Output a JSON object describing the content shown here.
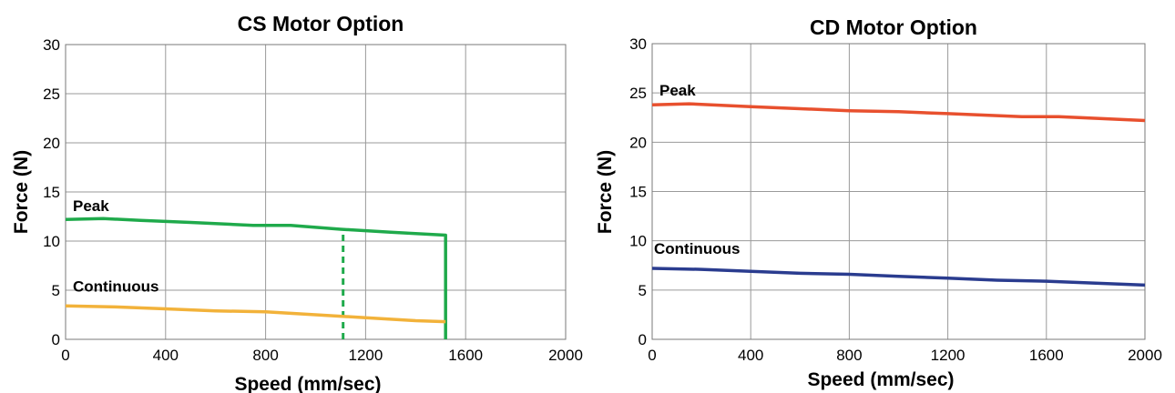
{
  "chart_data": [
    {
      "type": "line",
      "title": "CS Motor Option",
      "xlabel": "Speed (mm/sec)",
      "ylabel": "Force (N)",
      "xlim": [
        0,
        2000
      ],
      "ylim": [
        0,
        30
      ],
      "xticks": [
        0,
        400,
        800,
        1200,
        1600,
        2000
      ],
      "yticks": [
        0,
        5,
        10,
        15,
        20,
        25,
        30
      ],
      "grid": true,
      "series": [
        {
          "name": "Peak",
          "color": "#1faa4b",
          "x": [
            0,
            150,
            300,
            500,
            750,
            900,
            1100,
            1300,
            1520,
            1520
          ],
          "y": [
            12.2,
            12.3,
            12.1,
            11.9,
            11.6,
            11.6,
            11.2,
            10.9,
            10.6,
            0
          ]
        },
        {
          "name": "Continuous",
          "color": "#f2b23a",
          "x": [
            0,
            200,
            400,
            600,
            800,
            1000,
            1200,
            1400,
            1520
          ],
          "y": [
            3.4,
            3.3,
            3.1,
            2.9,
            2.8,
            2.5,
            2.2,
            1.9,
            1.8
          ]
        }
      ],
      "annotations": [
        {
          "type": "dashed-vertical",
          "color": "#1faa4b",
          "x": 1110,
          "y_from": 0,
          "y_to": 11.2
        }
      ]
    },
    {
      "type": "line",
      "title": "CD Motor Option",
      "xlabel": "Speed (mm/sec)",
      "ylabel": "Force (N)",
      "xlim": [
        0,
        2000
      ],
      "ylim": [
        0,
        30
      ],
      "xticks": [
        0,
        400,
        800,
        1200,
        1600,
        2000
      ],
      "yticks": [
        0,
        5,
        10,
        15,
        20,
        25,
        30
      ],
      "grid": true,
      "series": [
        {
          "name": "Peak",
          "color": "#e8502e",
          "x": [
            0,
            150,
            400,
            600,
            800,
            1000,
            1200,
            1500,
            1650,
            2000
          ],
          "y": [
            23.8,
            23.9,
            23.6,
            23.4,
            23.2,
            23.1,
            22.9,
            22.6,
            22.6,
            22.2
          ]
        },
        {
          "name": "Continuous",
          "color": "#2a3c8f",
          "x": [
            0,
            200,
            400,
            600,
            800,
            1000,
            1200,
            1400,
            1600,
            2000
          ],
          "y": [
            7.2,
            7.1,
            6.9,
            6.7,
            6.6,
            6.4,
            6.2,
            6.0,
            5.9,
            5.5
          ]
        }
      ],
      "annotations": []
    }
  ]
}
